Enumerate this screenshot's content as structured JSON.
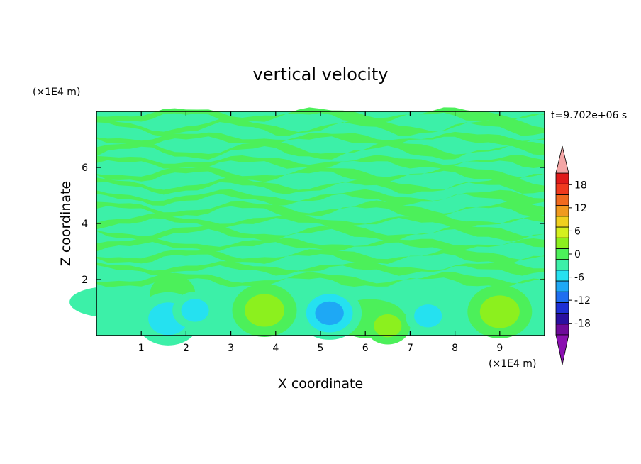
{
  "chart_data": {
    "type": "heatmap",
    "title": "vertical velocity",
    "xlabel": "X coordinate",
    "ylabel": "Z coordinate",
    "x_unit": "(×1E4 m)",
    "y_unit": "(×1E4 m)",
    "time_label": "t=9.702e+06 s",
    "xlim": [
      0,
      10
    ],
    "ylim": [
      0,
      8
    ],
    "x_ticks": [
      1,
      2,
      3,
      4,
      5,
      6,
      7,
      8,
      9
    ],
    "y_ticks": [
      2,
      4,
      6
    ],
    "colorbar": {
      "levels": [
        -21,
        -18,
        -15,
        -12,
        -9,
        -6,
        -3,
        0,
        3,
        6,
        9,
        12,
        15,
        18,
        21
      ],
      "tick_labels": [
        "18",
        "12",
        "6",
        "0",
        "-6",
        "-12",
        "-18"
      ],
      "tick_values": [
        18,
        12,
        6,
        0,
        -6,
        -12,
        -18
      ],
      "colors": [
        "#6e0a9a",
        "#2a0fa0",
        "#1d2fd4",
        "#1f6ef0",
        "#1ea8f5",
        "#25e1f0",
        "#3cf0a8",
        "#4cf05a",
        "#8cf01e",
        "#d4f01e",
        "#f0d01e",
        "#f09a1e",
        "#f06a1e",
        "#f03a1e",
        "#e01a1a"
      ],
      "under_color": "#8a10b0",
      "over_color": "#f4a6a6"
    },
    "features": [
      {
        "x": 3.75,
        "z": 0.9,
        "w": 6
      },
      {
        "x": 9.0,
        "z": 0.85,
        "w": 5
      },
      {
        "x": 6.5,
        "z": 0.35,
        "w": 4
      },
      {
        "x": 1.7,
        "z": 1.5,
        "w": 3
      },
      {
        "x": 5.2,
        "z": 0.8,
        "w": -9
      },
      {
        "x": 1.6,
        "z": 0.6,
        "w": -6
      },
      {
        "x": 2.2,
        "z": 0.9,
        "w": -4
      },
      {
        "x": 7.4,
        "z": 0.7,
        "w": -4
      }
    ]
  }
}
